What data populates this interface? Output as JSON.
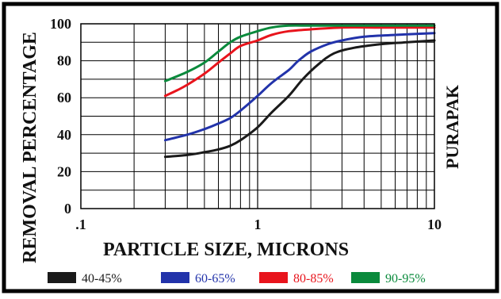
{
  "chart_data": {
    "type": "line",
    "xscale": "log",
    "xlim": [
      0.1,
      10
    ],
    "ylim": [
      0,
      100
    ],
    "grid": true,
    "xlabel": "PARTICLE SIZE, MICRONS",
    "ylabel": "REMOVAL PERCENTAGE",
    "right_label": "PURAPAK",
    "x_ticks": [
      {
        "value": 0.1,
        "label": ".1"
      },
      {
        "value": 1,
        "label": "1"
      },
      {
        "value": 10,
        "label": "10"
      }
    ],
    "y_ticks": [
      {
        "value": 0,
        "label": "0"
      },
      {
        "value": 20,
        "label": "20"
      },
      {
        "value": 40,
        "label": "40"
      },
      {
        "value": 60,
        "label": "60"
      },
      {
        "value": 80,
        "label": "80"
      },
      {
        "value": 100,
        "label": "100"
      }
    ],
    "legend_position": "bottom",
    "series": [
      {
        "name": "40-45%",
        "color": "#1a1a1a",
        "x": [
          0.3,
          0.4,
          0.5,
          0.6,
          0.7,
          0.8,
          1.0,
          1.2,
          1.5,
          1.8,
          2.2,
          2.7,
          3.5,
          5,
          7,
          10
        ],
        "y": [
          28,
          29,
          30.5,
          32,
          34,
          37,
          44,
          52,
          61,
          70,
          78,
          84,
          87,
          89,
          90,
          91
        ]
      },
      {
        "name": "60-65%",
        "color": "#2233aa",
        "x": [
          0.3,
          0.4,
          0.5,
          0.6,
          0.7,
          0.8,
          1.0,
          1.2,
          1.5,
          1.7,
          2.0,
          2.5,
          3.0,
          4,
          6,
          10
        ],
        "y": [
          37,
          40,
          43,
          46,
          49,
          53,
          61,
          68,
          75,
          80,
          85,
          89,
          91,
          93,
          94,
          95
        ]
      },
      {
        "name": "80-85%",
        "color": "#e8141c",
        "x": [
          0.3,
          0.35,
          0.4,
          0.5,
          0.6,
          0.7,
          0.8,
          1.0,
          1.2,
          1.5,
          2.0,
          3.0,
          5,
          10
        ],
        "y": [
          61,
          64,
          67,
          73,
          79,
          84,
          88,
          91,
          94,
          96,
          97,
          98,
          98,
          98
        ]
      },
      {
        "name": "90-95%",
        "color": "#0a8a3c",
        "x": [
          0.3,
          0.4,
          0.5,
          0.6,
          0.7,
          0.8,
          1.0,
          1.2,
          1.5,
          2.0,
          3.0,
          10
        ],
        "y": [
          69,
          74,
          79,
          85,
          90,
          93,
          96,
          98,
          99,
          99,
          99,
          99
        ]
      }
    ]
  }
}
